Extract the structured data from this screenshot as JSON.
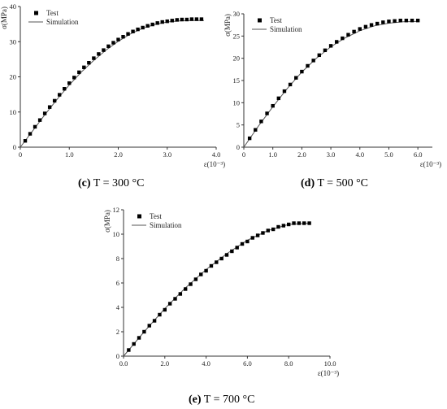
{
  "chart_data": [
    {
      "type": "line",
      "caption_label": "(c)",
      "caption_text": "T = 300 °C",
      "ylabel": "σ(MPa)",
      "xlabel": "ε(10⁻³)",
      "xlim": [
        0,
        4.0
      ],
      "ylim": [
        0,
        40
      ],
      "xticks": [
        0,
        1.0,
        2.0,
        3.0,
        4.0
      ],
      "xtick_labels": [
        "0",
        "1.0",
        "2.0",
        "3.0",
        "4.0"
      ],
      "yticks": [
        0,
        10,
        20,
        30,
        40
      ],
      "ytick_labels": [
        "0",
        "10",
        "20",
        "30",
        "40"
      ],
      "legend_position": "top-left",
      "grid": false,
      "series": [
        {
          "name": "Test",
          "style": "markers",
          "marker": "square",
          "color": "#000000",
          "x": [
            0.1,
            0.2,
            0.3,
            0.4,
            0.5,
            0.6,
            0.7,
            0.8,
            0.9,
            1.0,
            1.1,
            1.2,
            1.3,
            1.4,
            1.5,
            1.6,
            1.7,
            1.8,
            1.9,
            2.0,
            2.1,
            2.2,
            2.3,
            2.4,
            2.5,
            2.6,
            2.7,
            2.8,
            2.9,
            3.0,
            3.1,
            3.2,
            3.3,
            3.4,
            3.5,
            3.6,
            3.7
          ],
          "y": [
            1.8,
            3.8,
            5.8,
            7.7,
            9.6,
            11.4,
            13.2,
            14.9,
            16.6,
            18.2,
            19.8,
            21.3,
            22.7,
            24.0,
            25.3,
            26.5,
            27.6,
            28.7,
            29.7,
            30.6,
            31.4,
            32.2,
            32.9,
            33.5,
            34.0,
            34.5,
            34.9,
            35.3,
            35.6,
            35.8,
            36.0,
            36.2,
            36.3,
            36.3,
            36.4,
            36.4,
            36.4
          ]
        },
        {
          "name": "Simulation",
          "style": "line",
          "color": "#555555",
          "x": [
            0,
            0.25,
            0.5,
            0.75,
            1.0,
            1.25,
            1.5,
            1.75,
            2.0,
            2.25,
            2.5,
            2.75,
            3.0,
            3.25,
            3.5,
            3.75
          ],
          "y": [
            0,
            4.6,
            9.2,
            13.6,
            17.7,
            21.4,
            24.7,
            27.6,
            30.1,
            32.2,
            33.8,
            34.9,
            35.6,
            35.9,
            36.0,
            36.0
          ]
        }
      ]
    },
    {
      "type": "line",
      "caption_label": "(d)",
      "caption_text": "T = 500 °C",
      "ylabel": "σ(MPa)",
      "xlabel": "ε(10⁻³)",
      "xlim": [
        0,
        6.5
      ],
      "ylim": [
        0,
        30
      ],
      "xticks": [
        0,
        1.0,
        2.0,
        3.0,
        4.0,
        5.0,
        6.0
      ],
      "xtick_labels": [
        "0",
        "1.0",
        "2.0",
        "3.0",
        "4.0",
        "5.0",
        "6.0"
      ],
      "yticks": [
        0,
        5,
        10,
        15,
        20,
        25,
        30
      ],
      "ytick_labels": [
        "0",
        "5",
        "10",
        "15",
        "20",
        "25",
        "30"
      ],
      "legend_position": "top-left",
      "grid": false,
      "series": [
        {
          "name": "Test",
          "style": "markers",
          "marker": "square",
          "color": "#000000",
          "x": [
            0.2,
            0.4,
            0.6,
            0.8,
            1.0,
            1.2,
            1.4,
            1.6,
            1.8,
            2.0,
            2.2,
            2.4,
            2.6,
            2.8,
            3.0,
            3.2,
            3.4,
            3.6,
            3.8,
            4.0,
            4.2,
            4.4,
            4.6,
            4.8,
            5.0,
            5.2,
            5.4,
            5.6,
            5.8,
            6.0
          ],
          "y": [
            2.0,
            3.9,
            5.8,
            7.6,
            9.3,
            11.0,
            12.6,
            14.1,
            15.6,
            17.0,
            18.3,
            19.5,
            20.7,
            21.8,
            22.8,
            23.7,
            24.5,
            25.3,
            26.0,
            26.6,
            27.1,
            27.5,
            27.8,
            28.1,
            28.3,
            28.4,
            28.5,
            28.5,
            28.5,
            28.5
          ]
        },
        {
          "name": "Simulation",
          "style": "line",
          "color": "#555555",
          "x": [
            0,
            0.5,
            1.0,
            1.5,
            2.0,
            2.5,
            3.0,
            3.5,
            4.0,
            4.5,
            5.0,
            5.5,
            6.0
          ],
          "y": [
            0,
            4.7,
            9.1,
            13.2,
            16.9,
            20.0,
            22.6,
            24.6,
            26.2,
            27.3,
            27.9,
            28.2,
            28.3
          ]
        }
      ]
    },
    {
      "type": "line",
      "caption_label": "(e)",
      "caption_text": "T = 700 °C",
      "ylabel": "σ(MPa)",
      "xlabel": "ε(10⁻³)",
      "xlim": [
        0,
        10.0
      ],
      "ylim": [
        0,
        12
      ],
      "xticks": [
        0,
        2.0,
        4.0,
        6.0,
        8.0,
        10.0
      ],
      "xtick_labels": [
        "0.0",
        "2.0",
        "4.0",
        "6.0",
        "8.0",
        "10.0"
      ],
      "yticks": [
        0,
        2,
        4,
        6,
        8,
        10,
        12
      ],
      "ytick_labels": [
        "0",
        "2",
        "4",
        "6",
        "8",
        "10",
        "12"
      ],
      "legend_position": "top-left",
      "grid": false,
      "series": [
        {
          "name": "Test",
          "style": "markers",
          "marker": "square",
          "color": "#000000",
          "x": [
            0.25,
            0.5,
            0.75,
            1.0,
            1.25,
            1.5,
            1.75,
            2.0,
            2.25,
            2.5,
            2.75,
            3.0,
            3.25,
            3.5,
            3.75,
            4.0,
            4.25,
            4.5,
            4.75,
            5.0,
            5.25,
            5.5,
            5.75,
            6.0,
            6.25,
            6.5,
            6.75,
            7.0,
            7.25,
            7.5,
            7.75,
            8.0,
            8.25,
            8.5,
            8.75,
            9.0
          ],
          "y": [
            0.5,
            1.0,
            1.5,
            2.0,
            2.5,
            2.9,
            3.4,
            3.8,
            4.3,
            4.7,
            5.1,
            5.5,
            5.9,
            6.3,
            6.7,
            7.0,
            7.4,
            7.7,
            8.0,
            8.3,
            8.6,
            8.9,
            9.2,
            9.4,
            9.7,
            9.9,
            10.1,
            10.3,
            10.4,
            10.6,
            10.7,
            10.8,
            10.9,
            10.9,
            10.9,
            10.9
          ]
        },
        {
          "name": "Simulation",
          "style": "line",
          "color": "#555555",
          "x": [
            0,
            1.0,
            2.0,
            3.0,
            4.0,
            5.0,
            6.0,
            7.0,
            8.0,
            9.0
          ],
          "y": [
            0,
            2.0,
            3.9,
            5.6,
            7.1,
            8.4,
            9.5,
            10.3,
            10.8,
            10.9
          ]
        }
      ]
    }
  ]
}
